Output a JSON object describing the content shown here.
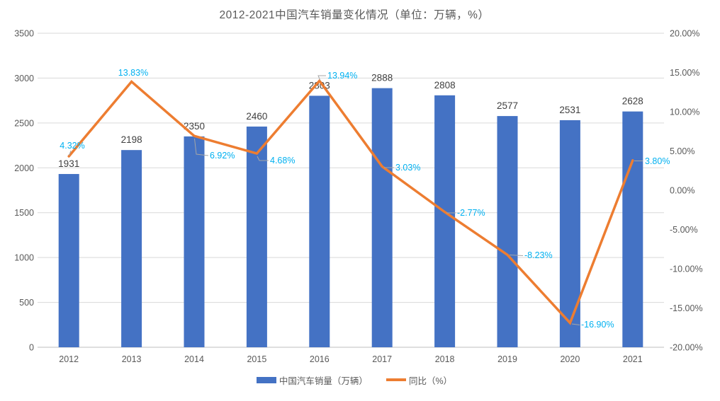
{
  "title": "2012-2021中国汽车销量变化情况（单位：万辆，%）",
  "colors": {
    "bar": "#4472C4",
    "line": "#ED7D31",
    "pct_label": "#00B0F0",
    "value_label": "#404040",
    "axis_text": "#595959",
    "gridline": "#D9D9D9",
    "axis_line": "#BFBFBF",
    "leader": "#A6A6A6",
    "background": "#FFFFFF"
  },
  "chart_data": {
    "type": "bar",
    "subtype": "bar+line combo, dual axis",
    "title": "2012-2021中国汽车销量变化情况（单位：万辆，%）",
    "categories": [
      "2012",
      "2013",
      "2014",
      "2015",
      "2016",
      "2017",
      "2018",
      "2019",
      "2020",
      "2021"
    ],
    "series": [
      {
        "name": "中国汽车销量（万辆）",
        "type": "bar",
        "axis": "left",
        "color": "#4472C4",
        "values": [
          1931,
          2198,
          2350,
          2460,
          2803,
          2888,
          2808,
          2577,
          2531,
          2628
        ],
        "data_labels": [
          "1931",
          "2198",
          "2350",
          "2460",
          "2803",
          "2888",
          "2808",
          "2577",
          "2531",
          "2628"
        ]
      },
      {
        "name": "同比（%）",
        "type": "line",
        "axis": "right",
        "color": "#ED7D31",
        "values": [
          4.32,
          13.83,
          6.92,
          4.68,
          13.94,
          3.03,
          -2.77,
          -8.23,
          -16.9,
          3.8
        ],
        "data_labels": [
          "4.32%",
          "13.83%",
          "6.92%",
          "4.68%",
          "13.94%",
          "3.03%",
          "-2.77%",
          "-8.23%",
          "-16.90%",
          "3.80%"
        ]
      }
    ],
    "left_axis": {
      "min": 0,
      "max": 3500,
      "step": 500,
      "tick_labels": [
        "3500",
        "3000",
        "2500",
        "2000",
        "1500",
        "1000",
        "500",
        "0"
      ]
    },
    "right_axis": {
      "min": -20,
      "max": 20,
      "step": 5,
      "tick_labels": [
        "20.00%",
        "15.00%",
        "10.00%",
        "5.00%",
        "0.00%",
        "-5.00%",
        "-10.00%",
        "-15.00%",
        "-20.00%"
      ]
    },
    "gridlines": "horizontal only",
    "legend_position": "bottom"
  },
  "legend": {
    "items": [
      {
        "label": "中国汽车销量（万辆）",
        "swatch": "bar",
        "color": "#4472C4"
      },
      {
        "label": "同比（%）",
        "swatch": "line",
        "color": "#ED7D31"
      }
    ]
  }
}
